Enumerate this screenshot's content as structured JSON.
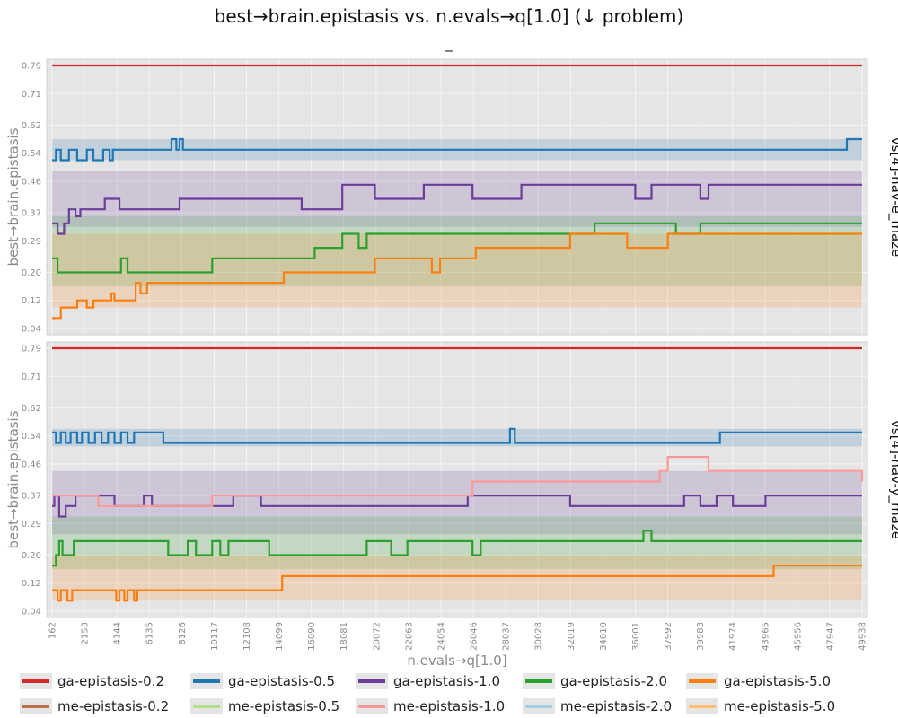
{
  "title": "best→brain.epistasis vs. n.evals→q[1.0] (↓ problem)",
  "subtitle": "_",
  "colors": {
    "panel_bg": "#e5e5e5",
    "grid": "#f5f5f5",
    "axis_text": "#8a8a8a"
  },
  "legend": [
    {
      "label": "ga-epistasis-0.2",
      "color": "#d62728"
    },
    {
      "label": "ga-epistasis-0.5",
      "color": "#1f77b4"
    },
    {
      "label": "ga-epistasis-1.0",
      "color": "#6a3d9a"
    },
    {
      "label": "ga-epistasis-2.0",
      "color": "#2ca02c"
    },
    {
      "label": "ga-epistasis-5.0",
      "color": "#ff7f0e"
    },
    {
      "label": "me-epistasis-0.2",
      "color": "#b5724b"
    },
    {
      "label": "me-epistasis-0.5",
      "color": "#b2df8a"
    },
    {
      "label": "me-epistasis-1.0",
      "color": "#fb9a99"
    },
    {
      "label": "me-epistasis-2.0",
      "color": "#a6cee3"
    },
    {
      "label": "me-epistasis-5.0",
      "color": "#fdbf6f"
    }
  ],
  "chart_data": [
    {
      "type": "line",
      "panel_label": "vs[4]-nav-e_maze",
      "ylabel": "best→brain.epistasis",
      "xlabel": "",
      "xlim": [
        162,
        49938
      ],
      "ylim": [
        0.04,
        0.79
      ],
      "y_ticks": [
        "0.79",
        "0.71",
        "0.62",
        "0.54",
        "0.46",
        "0.37",
        "0.29",
        "0.20",
        "0.12",
        "0.04"
      ],
      "grid": true,
      "series": [
        {
          "name": "ga-epistasis-0.2",
          "color": "#d62728",
          "x": [
            162,
            49938
          ],
          "y": [
            0.79,
            0.79
          ]
        },
        {
          "name": "ga-epistasis-0.5",
          "color": "#1f77b4",
          "band": [
            0.52,
            0.58
          ],
          "x": [
            162,
            400,
            700,
            1200,
            1700,
            2300,
            2700,
            3300,
            3700,
            3900,
            4200,
            7300,
            7500,
            7800,
            8000,
            8200,
            8400,
            46000,
            49000,
            49938
          ],
          "y": [
            0.52,
            0.55,
            0.52,
            0.55,
            0.52,
            0.55,
            0.52,
            0.55,
            0.52,
            0.55,
            0.55,
            0.55,
            0.58,
            0.55,
            0.58,
            0.55,
            0.55,
            0.55,
            0.58,
            0.58
          ]
        },
        {
          "name": "ga-epistasis-1.0",
          "color": "#6a3d9a",
          "band": [
            0.33,
            0.49
          ],
          "x": [
            162,
            500,
            900,
            1200,
            1600,
            1900,
            2400,
            3000,
            3400,
            3900,
            4300,
            5500,
            6500,
            7000,
            8000,
            10000,
            15500,
            16000,
            18000,
            19200,
            20000,
            22000,
            23000,
            24000,
            26000,
            27000,
            29000,
            33000,
            36000,
            37000,
            40000,
            40500,
            45000,
            49938
          ],
          "y": [
            0.34,
            0.31,
            0.34,
            0.38,
            0.36,
            0.38,
            0.38,
            0.38,
            0.41,
            0.41,
            0.38,
            0.38,
            0.38,
            0.38,
            0.41,
            0.41,
            0.38,
            0.38,
            0.45,
            0.45,
            0.41,
            0.41,
            0.45,
            0.45,
            0.41,
            0.41,
            0.45,
            0.45,
            0.41,
            0.45,
            0.41,
            0.45,
            0.45,
            0.45
          ]
        },
        {
          "name": "ga-epistasis-2.0",
          "color": "#2ca02c",
          "band": [
            0.16,
            0.36
          ],
          "x": [
            162,
            500,
            1000,
            4000,
            4400,
            4800,
            10000,
            15600,
            16300,
            17500,
            18000,
            19000,
            19500,
            20500,
            25000,
            26000,
            30000,
            32000,
            33500,
            34000,
            38000,
            38500,
            40000,
            41000,
            49938
          ],
          "y": [
            0.24,
            0.2,
            0.2,
            0.2,
            0.24,
            0.2,
            0.24,
            0.24,
            0.27,
            0.27,
            0.31,
            0.27,
            0.31,
            0.31,
            0.31,
            0.31,
            0.31,
            0.31,
            0.34,
            0.34,
            0.34,
            0.31,
            0.34,
            0.34,
            0.34
          ]
        },
        {
          "name": "ga-epistasis-5.0",
          "color": "#ff7f0e",
          "band": [
            0.1,
            0.31
          ],
          "x": [
            162,
            500,
            700,
            1300,
            1700,
            2300,
            2700,
            3400,
            3800,
            4000,
            4500,
            5300,
            5600,
            6000,
            6400,
            10000,
            14000,
            14400,
            18000,
            20000,
            22000,
            23000,
            23500,
            24000,
            25000,
            26200,
            27500,
            28000,
            31000,
            32000,
            35000,
            35500,
            37500,
            38000,
            40000,
            45000,
            49938
          ],
          "y": [
            0.07,
            0.07,
            0.1,
            0.1,
            0.12,
            0.1,
            0.12,
            0.12,
            0.14,
            0.12,
            0.12,
            0.17,
            0.14,
            0.17,
            0.17,
            0.17,
            0.17,
            0.2,
            0.2,
            0.24,
            0.24,
            0.24,
            0.2,
            0.24,
            0.24,
            0.27,
            0.27,
            0.27,
            0.27,
            0.31,
            0.31,
            0.27,
            0.27,
            0.31,
            0.31,
            0.31,
            0.31
          ]
        }
      ]
    },
    {
      "type": "line",
      "panel_label": "vs[4]-nav-y_maze",
      "ylabel": "best→brain.epistasis",
      "xlabel": "n.evals→q[1.0]",
      "xlim": [
        162,
        49938
      ],
      "ylim": [
        0.04,
        0.79
      ],
      "x_ticks": [
        "162",
        "2153",
        "4144",
        "6135",
        "8126",
        "10117",
        "12108",
        "14099",
        "16090",
        "18081",
        "20072",
        "22063",
        "24054",
        "26046",
        "28037",
        "30028",
        "32019",
        "34010",
        "36001",
        "37992",
        "39983",
        "41974",
        "43965",
        "45956",
        "47947",
        "49938"
      ],
      "y_ticks": [
        "0.79",
        "0.71",
        "0.62",
        "0.54",
        "0.46",
        "0.37",
        "0.29",
        "0.20",
        "0.12",
        "0.04"
      ],
      "grid": true,
      "series": [
        {
          "name": "ga-epistasis-0.2",
          "color": "#d62728",
          "x": [
            162,
            49938
          ],
          "y": [
            0.79,
            0.79
          ]
        },
        {
          "name": "ga-epistasis-0.5",
          "color": "#1f77b4",
          "band": [
            0.51,
            0.56
          ],
          "x": [
            162,
            400,
            700,
            1000,
            1300,
            1700,
            2000,
            2400,
            2800,
            3200,
            3600,
            4000,
            4400,
            4800,
            5200,
            6600,
            7000,
            25500,
            26000,
            28000,
            28300,
            28600,
            41000,
            41200,
            49938
          ],
          "y": [
            0.55,
            0.52,
            0.55,
            0.52,
            0.55,
            0.52,
            0.55,
            0.52,
            0.55,
            0.52,
            0.55,
            0.52,
            0.55,
            0.52,
            0.55,
            0.55,
            0.52,
            0.52,
            0.52,
            0.52,
            0.56,
            0.52,
            0.52,
            0.55,
            0.55
          ]
        },
        {
          "name": "ga-epistasis-1.0",
          "color": "#6a3d9a",
          "band": [
            0.26,
            0.44
          ],
          "x": [
            162,
            300,
            600,
            1000,
            1300,
            1600,
            4000,
            5800,
            6300,
            8000,
            11000,
            11300,
            13000,
            24000,
            25000,
            25700,
            26000,
            27000,
            31000,
            32000,
            38000,
            39000,
            40000,
            41000,
            42000,
            44000,
            49938
          ],
          "y": [
            0.34,
            0.37,
            0.31,
            0.34,
            0.34,
            0.37,
            0.34,
            0.37,
            0.34,
            0.34,
            0.34,
            0.37,
            0.34,
            0.34,
            0.34,
            0.37,
            0.37,
            0.37,
            0.37,
            0.34,
            0.34,
            0.37,
            0.34,
            0.37,
            0.34,
            0.37,
            0.37
          ]
        },
        {
          "name": "ga-epistasis-2.0",
          "color": "#2ca02c",
          "band": [
            0.16,
            0.31
          ],
          "x": [
            162,
            400,
            600,
            800,
            1200,
            1500,
            7000,
            7300,
            8500,
            9000,
            10000,
            10500,
            11000,
            13000,
            13500,
            19000,
            19500,
            21000,
            22000,
            25500,
            26000,
            26500,
            28000,
            36000,
            36500,
            37000,
            37500,
            49938
          ],
          "y": [
            0.17,
            0.2,
            0.24,
            0.2,
            0.2,
            0.24,
            0.24,
            0.2,
            0.24,
            0.2,
            0.24,
            0.2,
            0.24,
            0.24,
            0.2,
            0.2,
            0.24,
            0.2,
            0.24,
            0.24,
            0.2,
            0.24,
            0.24,
            0.24,
            0.27,
            0.24,
            0.24,
            0.24
          ]
        },
        {
          "name": "ga-epistasis-5.0",
          "color": "#ff7f0e",
          "band": [
            0.07,
            0.2
          ],
          "x": [
            162,
            500,
            700,
            1100,
            1400,
            2000,
            2400,
            3800,
            4100,
            4300,
            4600,
            4800,
            5200,
            5400,
            6400,
            14000,
            14300,
            25000,
            26000,
            26500,
            40000,
            44000,
            44500,
            49938
          ],
          "y": [
            0.1,
            0.07,
            0.1,
            0.07,
            0.1,
            0.1,
            0.1,
            0.1,
            0.07,
            0.1,
            0.07,
            0.1,
            0.07,
            0.1,
            0.1,
            0.1,
            0.14,
            0.14,
            0.14,
            0.14,
            0.14,
            0.14,
            0.17,
            0.17
          ]
        },
        {
          "name": "me-epistasis-1.0",
          "color": "#fb9a99",
          "x": [
            162,
            3000,
            10000,
            17000,
            26000,
            36000,
            37500,
            38000,
            40000,
            40500,
            49938
          ],
          "y": [
            0.37,
            0.34,
            0.37,
            0.37,
            0.41,
            0.41,
            0.44,
            0.48,
            0.48,
            0.44,
            0.41
          ]
        }
      ]
    }
  ]
}
